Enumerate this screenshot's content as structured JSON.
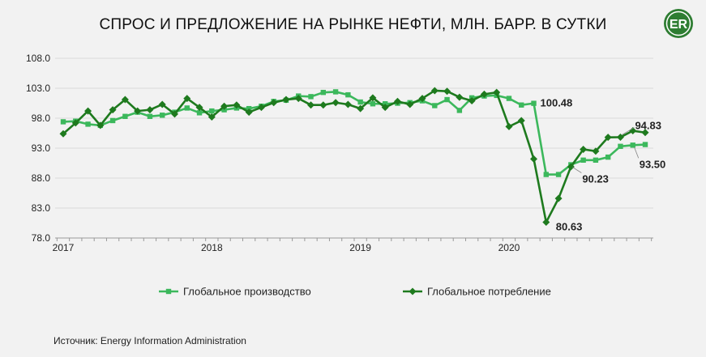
{
  "title": "СПРОС И ПРЕДЛОЖЕНИЕ НА РЫНКЕ НЕФТИ, МЛН. БАРР. В СУТКИ",
  "logo_text": "ER",
  "source": "Источник: Energy Information Administration",
  "colors": {
    "production": "#3cb85c",
    "consumption": "#1e7a1e",
    "grid": "#d9d9d9",
    "axis": "#999999",
    "background": "#f2f2f2"
  },
  "chart_data": {
    "type": "line",
    "title": "СПРОС И ПРЕДЛОЖЕНИЕ НА РЫНКЕ НЕФТИ, МЛН. БАРР. В СУТКИ",
    "ylim": [
      78.0,
      108.0
    ],
    "yticks": [
      "108.0",
      "103.0",
      "98.0",
      "93.0",
      "88.0",
      "83.0",
      "78.0"
    ],
    "xticks": [
      "2017",
      "2018",
      "2019",
      "2020"
    ],
    "grid": true,
    "legend_position": "bottom",
    "x": [
      "2017-01",
      "2017-02",
      "2017-03",
      "2017-04",
      "2017-05",
      "2017-06",
      "2017-07",
      "2017-08",
      "2017-09",
      "2017-10",
      "2017-11",
      "2017-12",
      "2018-01",
      "2018-02",
      "2018-03",
      "2018-04",
      "2018-05",
      "2018-06",
      "2018-07",
      "2018-08",
      "2018-09",
      "2018-10",
      "2018-11",
      "2018-12",
      "2019-01",
      "2019-02",
      "2019-03",
      "2019-04",
      "2019-05",
      "2019-06",
      "2019-07",
      "2019-08",
      "2019-09",
      "2019-10",
      "2019-11",
      "2019-12",
      "2020-01",
      "2020-02",
      "2020-03",
      "2020-04",
      "2020-05",
      "2020-06",
      "2020-07",
      "2020-08",
      "2020-09",
      "2020-10",
      "2020-11",
      "2020-12"
    ],
    "series": [
      {
        "name": "Глобальное производство",
        "values": [
          97.4,
          97.5,
          97.0,
          96.8,
          97.6,
          98.3,
          99.0,
          98.3,
          98.5,
          99.0,
          99.7,
          98.9,
          99.2,
          99.4,
          99.7,
          99.6,
          100.0,
          100.8,
          101.0,
          101.7,
          101.6,
          102.3,
          102.4,
          101.9,
          100.7,
          100.4,
          100.4,
          100.5,
          100.6,
          100.9,
          100.1,
          101.1,
          99.3,
          101.4,
          101.7,
          101.8,
          101.3,
          100.2,
          100.48,
          88.6,
          88.6,
          90.23,
          91.0,
          91.0,
          91.5,
          93.3,
          93.5,
          93.6
        ],
        "marker": "square",
        "labels": [
          {
            "index": 38,
            "text": "100.48"
          },
          {
            "index": 41,
            "text": "90.23"
          },
          {
            "index": 46,
            "text": "93.50"
          }
        ]
      },
      {
        "name": "Глобальное потребление",
        "values": [
          95.4,
          97.2,
          99.2,
          96.8,
          99.4,
          101.1,
          99.2,
          99.4,
          100.3,
          98.7,
          101.3,
          99.8,
          98.2,
          100.0,
          100.2,
          99.0,
          99.8,
          100.6,
          101.1,
          101.3,
          100.2,
          100.2,
          100.6,
          100.3,
          99.6,
          101.4,
          99.8,
          100.8,
          100.3,
          101.3,
          102.6,
          102.5,
          101.5,
          100.9,
          102.0,
          102.3,
          96.6,
          97.6,
          91.2,
          80.63,
          84.6,
          89.9,
          92.8,
          92.5,
          94.8,
          94.83,
          95.9,
          95.6
        ],
        "marker": "diamond",
        "labels": [
          {
            "index": 39,
            "text": "80.63"
          },
          {
            "index": 45,
            "text": "94.83"
          }
        ]
      }
    ]
  }
}
